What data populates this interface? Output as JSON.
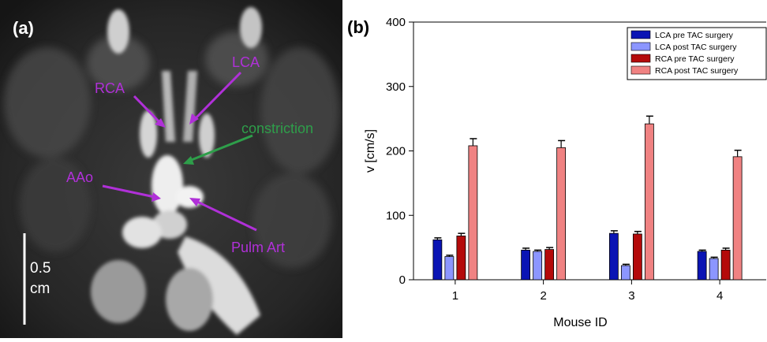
{
  "figure": {
    "panel_a_label": "(a)",
    "panel_b_label": "(b)"
  },
  "image_panel": {
    "annotations": [
      {
        "key": "rca",
        "text": "RCA",
        "color": "#b030d8"
      },
      {
        "key": "lca",
        "text": "LCA",
        "color": "#b030d8"
      },
      {
        "key": "constriction",
        "text": "constriction",
        "color": "#2e9e4a"
      },
      {
        "key": "aao",
        "text": "AAo",
        "color": "#b030d8"
      },
      {
        "key": "pulm",
        "text": "Pulm Art",
        "color": "#b030d8"
      }
    ],
    "scale_bar": {
      "value": "0.5",
      "unit": "cm"
    }
  },
  "chart_data": {
    "type": "bar",
    "title": "",
    "xlabel": "Mouse ID",
    "ylabel": "v [cm/s]",
    "ylim": [
      0,
      400
    ],
    "yticks": [
      0,
      100,
      200,
      300,
      400
    ],
    "categories": [
      "1",
      "2",
      "3",
      "4"
    ],
    "legend_position": "top-right",
    "grid": false,
    "series": [
      {
        "name": "LCA pre TAC surgery",
        "color": "#0a14b4",
        "values": [
          62,
          46,
          72,
          44
        ],
        "errors": [
          3,
          3,
          4,
          2
        ]
      },
      {
        "name": "LCA post TAC surgery",
        "color": "#8c96ff",
        "values": [
          36,
          44,
          22,
          33
        ],
        "errors": [
          2,
          2,
          2,
          2
        ]
      },
      {
        "name": "RCA pre TAC surgery",
        "color": "#b40a0a",
        "values": [
          68,
          47,
          71,
          46
        ],
        "errors": [
          4,
          3,
          4,
          3
        ]
      },
      {
        "name": "RCA post TAC surgery",
        "color": "#f08282",
        "values": [
          208,
          205,
          242,
          191
        ],
        "errors": [
          11,
          11,
          12,
          10
        ]
      }
    ]
  }
}
